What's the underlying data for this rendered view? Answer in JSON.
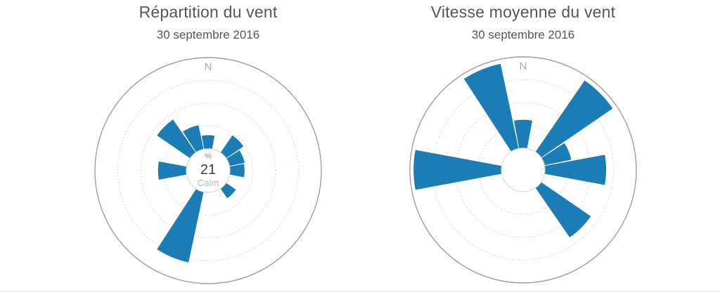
{
  "page": {
    "background": "#ffffff"
  },
  "style": {
    "wedge_color": "#1a7db5",
    "title_color": "#565658",
    "north_label_color": "#a9a9a9",
    "grid_dot_color": "#c8c8c8",
    "outer_circle_color": "#9e9e9e",
    "hub_border_color": "#d9d9d9",
    "center_pct_color": "#8a8a8a",
    "center_value_color": "#404040",
    "center_calm_color": "#b9b9b9"
  },
  "chart_data": [
    {
      "type": "windrose",
      "title": "Répartition du vent",
      "subtitle": "30 septembre 2016",
      "north_label": "N",
      "center_label": {
        "top": "%",
        "value": "21",
        "bottom": "Calm"
      },
      "grid": {
        "dotted_rings": 3,
        "outer_solid_ring": true,
        "tick_labels_visible": false
      },
      "value_unit": "fraction_of_radial_scale",
      "sectors": [
        {
          "dir": "N",
          "angle": 0,
          "value": 0.15
        },
        {
          "dir": "NNE",
          "angle": 22.5,
          "value": 0
        },
        {
          "dir": "NE",
          "angle": 45,
          "value": 0.23
        },
        {
          "dir": "ENE",
          "angle": 67.5,
          "value": 0.17
        },
        {
          "dir": "E",
          "angle": 90,
          "value": 0.16
        },
        {
          "dir": "ESE",
          "angle": 112.5,
          "value": 0
        },
        {
          "dir": "SE",
          "angle": 135,
          "value": 0.13
        },
        {
          "dir": "SSE",
          "angle": 157.5,
          "value": 0
        },
        {
          "dir": "S",
          "angle": 180,
          "value": 0
        },
        {
          "dir": "SSW",
          "angle": 202.5,
          "value": 0.79
        },
        {
          "dir": "SW",
          "angle": 225,
          "value": 0
        },
        {
          "dir": "WSW",
          "angle": 247.5,
          "value": 0
        },
        {
          "dir": "W",
          "angle": 270,
          "value": 0.31
        },
        {
          "dir": "WNW",
          "angle": 292.5,
          "value": 0
        },
        {
          "dir": "NW",
          "angle": 315,
          "value": 0.44
        },
        {
          "dir": "NNW",
          "angle": 337.5,
          "value": 0.27
        }
      ]
    },
    {
      "type": "windrose",
      "title": "Vitesse moyenne du vent",
      "subtitle": "30 septembre 2016",
      "north_label": "N",
      "center_label": null,
      "grid": {
        "dotted_rings": 3,
        "outer_solid_ring": true,
        "tick_labels_visible": false
      },
      "value_unit": "fraction_of_radial_scale",
      "sectors": [
        {
          "dir": "N",
          "angle": 0,
          "value": 0.31
        },
        {
          "dir": "NNE",
          "angle": 22.5,
          "value": 0
        },
        {
          "dir": "NE",
          "angle": 45,
          "value": 0.95
        },
        {
          "dir": "ENE",
          "angle": 67.5,
          "value": 0.3
        },
        {
          "dir": "E",
          "angle": 90,
          "value": 0.67
        },
        {
          "dir": "ESE",
          "angle": 112.5,
          "value": 0
        },
        {
          "dir": "SE",
          "angle": 135,
          "value": 0.66
        },
        {
          "dir": "SSE",
          "angle": 157.5,
          "value": 0
        },
        {
          "dir": "S",
          "angle": 180,
          "value": 0
        },
        {
          "dir": "SSW",
          "angle": 202.5,
          "value": 0
        },
        {
          "dir": "SW",
          "angle": 225,
          "value": 0
        },
        {
          "dir": "WSW",
          "angle": 247.5,
          "value": 0
        },
        {
          "dir": "W",
          "angle": 270,
          "value": 0.96
        },
        {
          "dir": "WNW",
          "angle": 292.5,
          "value": 0
        },
        {
          "dir": "NW",
          "angle": 315,
          "value": 0
        },
        {
          "dir": "NNW",
          "angle": 337.5,
          "value": 0.95
        }
      ]
    }
  ]
}
